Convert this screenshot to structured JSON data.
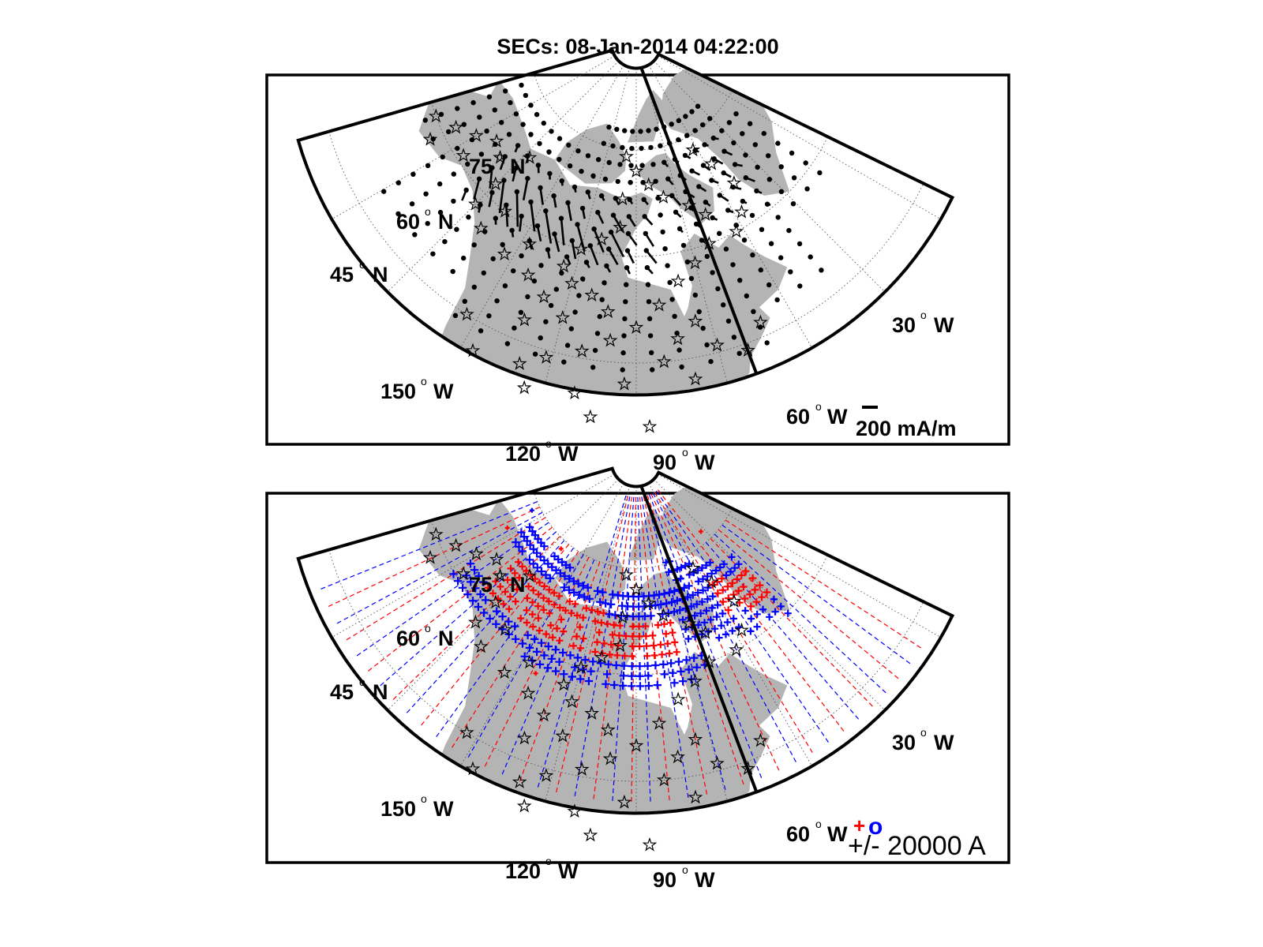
{
  "figure": {
    "title": "SECs: 08-Jan-2014 04:22:00"
  },
  "colors": {
    "land": "#b4b4b4",
    "positive": "#ff0000",
    "negative": "#0000ff",
    "grid": "#555555",
    "frame": "#000000"
  },
  "chart_data": [
    {
      "type": "scatter",
      "name": "panel-top",
      "projection": "polar-stereographic sector",
      "lat_labels": [
        "75",
        "60",
        "45"
      ],
      "lat_units": "N",
      "lon_labels": [
        "150",
        "120",
        "90",
        "60",
        "30"
      ],
      "lon_units": "W",
      "lat_range": [
        40,
        90
      ],
      "lon_range": [
        -165,
        -25
      ],
      "scale_label": "200 mA/m",
      "markers": {
        "stations": "star",
        "grid_points": "dot"
      },
      "vector_field": "equivalent ionospheric currents (SECs)",
      "meridian_line_lon": -75
    },
    {
      "type": "scatter",
      "name": "panel-bottom",
      "projection": "polar-stereographic sector",
      "lat_labels": [
        "75",
        "60",
        "45"
      ],
      "lat_units": "N",
      "lon_labels": [
        "150",
        "120",
        "90",
        "60",
        "30"
      ],
      "lon_units": "W",
      "lat_range": [
        40,
        90
      ],
      "lon_range": [
        -165,
        -25
      ],
      "legend_label": "+/- 20000 A",
      "legend_symbols": [
        "+",
        "o"
      ],
      "markers": {
        "stations": "star",
        "positive": "plus",
        "negative": "plus"
      },
      "meridian_line_lon": -75
    }
  ]
}
